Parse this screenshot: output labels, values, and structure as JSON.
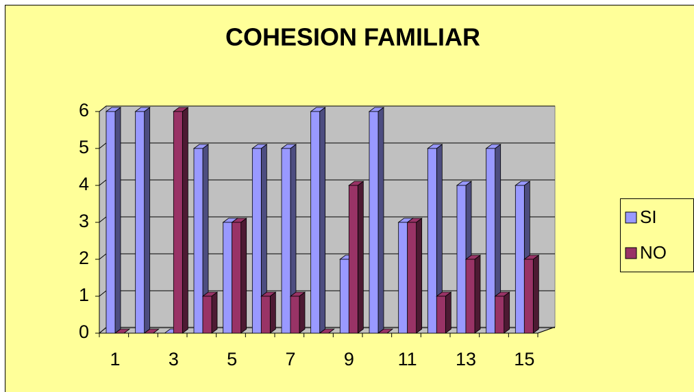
{
  "chart_data": {
    "type": "bar3d",
    "title": "COHESION FAMILIAR",
    "categories": [
      1,
      null,
      3,
      null,
      5,
      null,
      7,
      null,
      9,
      null,
      11,
      null,
      13,
      null,
      15
    ],
    "series": [
      {
        "name": "SI",
        "color": "#9999ff",
        "values": [
          6,
          6,
          0,
          5,
          3,
          5,
          5,
          6,
          2,
          6,
          3,
          5,
          4,
          5,
          4
        ]
      },
      {
        "name": "NO",
        "color": "#993366",
        "values": [
          0,
          0,
          6,
          1,
          3,
          1,
          1,
          0,
          4,
          0,
          3,
          1,
          2,
          1,
          2
        ]
      }
    ],
    "ylim": [
      0,
      6
    ],
    "yticks": [
      0,
      1,
      2,
      3,
      4,
      5,
      6
    ],
    "grid": true,
    "legend": "right"
  }
}
